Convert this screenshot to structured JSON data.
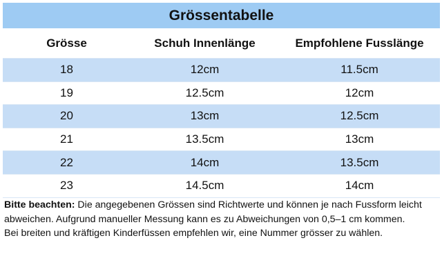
{
  "table": {
    "title": "Grössentabelle",
    "headers": [
      "Grösse",
      "Schuh Innenlänge",
      "Empfohlene Fusslänge"
    ],
    "rows": [
      [
        "18",
        "12cm",
        "11.5cm"
      ],
      [
        "19",
        "12.5cm",
        "12cm"
      ],
      [
        "20",
        "13cm",
        "12.5cm"
      ],
      [
        "21",
        "13.5cm",
        "13cm"
      ],
      [
        "22",
        "14cm",
        "13.5cm"
      ],
      [
        "23",
        "14.5cm",
        "14cm"
      ]
    ]
  },
  "note": {
    "label": "Bitte beachten:",
    "text1": " Die angegebenen Grössen sind Richtwerte und können je nach Fussform leicht abweichen. Aufgrund manueller Messung kann es zu Abweichungen von 0,5–1 cm kommen.",
    "text2": "Bei breiten und kräftigen Kinderfüssen empfehlen wir, eine Nummer grösser zu wählen."
  },
  "colors": {
    "title_bg": "#9ecbf3",
    "row_alt_bg": "#c6ddf6",
    "text": "#111111"
  }
}
